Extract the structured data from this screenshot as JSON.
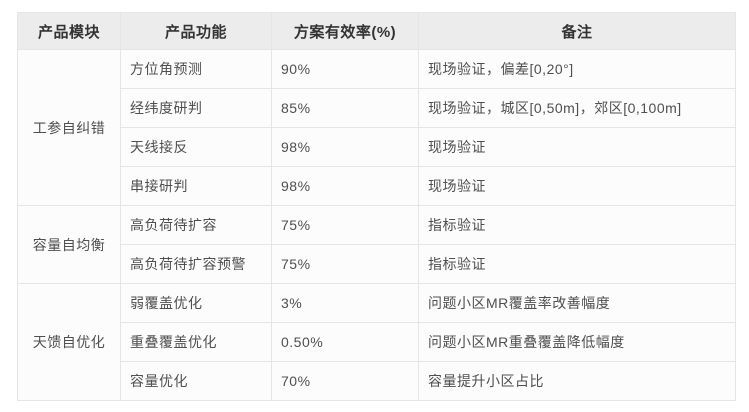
{
  "table": {
    "headers": [
      "产品模块",
      "产品功能",
      "方案有效率(%)",
      "备注"
    ],
    "groups": [
      {
        "module": "工参自纠错",
        "rows": [
          {
            "function": "方位角预测",
            "rate": "90%",
            "remark": "现场验证，偏差[0,20°]"
          },
          {
            "function": "经纬度研判",
            "rate": "85%",
            "remark": "现场验证，城区[0,50m]，郊区[0,100m]"
          },
          {
            "function": "天线接反",
            "rate": "98%",
            "remark": "现场验证"
          },
          {
            "function": "串接研判",
            "rate": "98%",
            "remark": "现场验证"
          }
        ]
      },
      {
        "module": "容量自均衡",
        "rows": [
          {
            "function": "高负荷待扩容",
            "rate": "75%",
            "remark": "指标验证"
          },
          {
            "function": "高负荷待扩容预警",
            "rate": "75%",
            "remark": "指标验证"
          }
        ]
      },
      {
        "module": "天馈自优化",
        "rows": [
          {
            "function": "弱覆盖优化",
            "rate": "3%",
            "remark": "问题小区MR覆盖率改善幅度"
          },
          {
            "function": "重叠覆盖优化",
            "rate": "0.50%",
            "remark": "问题小区MR重叠覆盖降低幅度"
          },
          {
            "function": "容量优化",
            "rate": "70%",
            "remark": "容量提升小区占比"
          }
        ]
      }
    ],
    "colors": {
      "header_bg": "#ececec",
      "header_text": "#333333",
      "body_text": "#4f4f4f",
      "border": "#e5e5e5",
      "body_bg": "#fcfcfc"
    }
  }
}
